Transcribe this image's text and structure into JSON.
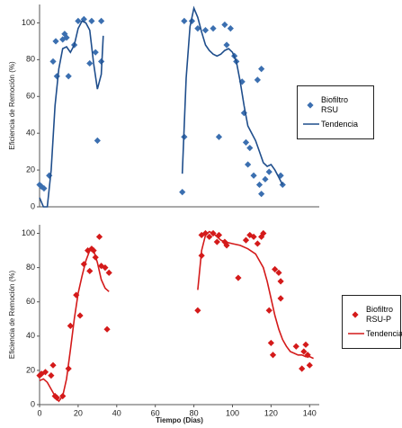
{
  "chart_data": [
    {
      "type": "scatter",
      "ylabel": "Eficiencia de Remoción (%)",
      "xlim": [
        0,
        145
      ],
      "ylim": [
        0,
        110
      ],
      "yticks": [
        0,
        20,
        40,
        60,
        80,
        100
      ],
      "legend": "right",
      "series": [
        {
          "name": "Biofiltro RSU",
          "mode": "markers",
          "marker": "diamond",
          "color": "#3b6fb0",
          "x": [
            0,
            1,
            2.3,
            5,
            7,
            8.4,
            9,
            12,
            13,
            14,
            15,
            18,
            20,
            23,
            26,
            27,
            29,
            30,
            32,
            32,
            74,
            75,
            75,
            79,
            82,
            86,
            90,
            93,
            96,
            97,
            99,
            101,
            102,
            105,
            106,
            107,
            108,
            109,
            111,
            113,
            114,
            115,
            115,
            117,
            119,
            125,
            126
          ],
          "values": [
            12,
            11,
            10,
            17,
            79,
            90,
            71,
            91,
            94,
            92,
            71,
            88,
            101,
            102,
            78,
            101,
            84,
            36,
            79,
            101,
            8,
            38,
            101,
            101,
            97,
            96,
            97,
            38,
            99,
            88,
            97,
            82,
            79,
            68,
            51,
            35,
            23,
            32,
            17,
            69,
            12,
            7,
            75,
            15,
            19,
            17,
            12
          ]
        },
        {
          "name": "Tendencia",
          "mode": "line",
          "color": "#1f4e8c",
          "x": [
            0,
            2,
            4,
            6,
            8,
            10,
            12,
            14,
            16,
            18,
            20,
            22,
            24,
            26,
            28,
            30,
            32,
            33,
            50,
            74,
            76,
            78,
            80,
            82,
            84,
            86,
            88,
            90,
            92,
            94,
            96,
            98,
            100,
            102,
            104,
            106,
            108,
            110,
            112,
            114,
            116,
            118,
            120,
            122,
            124,
            126
          ],
          "values": [
            5,
            0,
            0,
            20,
            55,
            75,
            86,
            87,
            84,
            88,
            97,
            101,
            100,
            96,
            78,
            64,
            72,
            93,
            null,
            18,
            70,
            98,
            108,
            103,
            95,
            88,
            85,
            83,
            82,
            83,
            85,
            86,
            84,
            79,
            68,
            55,
            44,
            40,
            36,
            30,
            24,
            22,
            23,
            20,
            16,
            12
          ]
        }
      ]
    },
    {
      "type": "scatter",
      "ylabel": "Eficiencia de Remoción (%)",
      "xlabel": "Tiempo (Días)",
      "xlim": [
        0,
        145
      ],
      "ylim": [
        0,
        105
      ],
      "xticks": [
        0,
        20,
        40,
        60,
        80,
        100,
        120,
        140
      ],
      "yticks": [
        0,
        20,
        40,
        60,
        80,
        100
      ],
      "legend": "right",
      "series": [
        {
          "name": "Biofiltro RSU-P",
          "mode": "markers",
          "marker": "diamond",
          "color": "#d41a1a",
          "x": [
            0,
            1,
            3,
            6,
            7,
            8,
            9,
            12,
            15,
            16,
            19,
            21,
            23,
            25,
            26,
            27,
            28,
            29,
            31,
            32,
            34,
            35,
            36,
            82,
            84,
            84,
            86,
            88,
            90,
            92,
            93,
            96,
            97,
            103,
            107,
            109,
            111,
            113,
            115,
            116,
            119,
            120,
            121,
            122,
            124,
            125,
            125,
            133,
            136,
            137,
            138,
            139,
            140
          ],
          "values": [
            17,
            18,
            19,
            17,
            23,
            5,
            4,
            5,
            21,
            46,
            64,
            52,
            82,
            90,
            78,
            91,
            90,
            86,
            98,
            81,
            80,
            44,
            77,
            55,
            87,
            99,
            100,
            98,
            100,
            95,
            99,
            95,
            93,
            74,
            96,
            99,
            98,
            94,
            98,
            100,
            55,
            36,
            29,
            79,
            77,
            72,
            62,
            34,
            21,
            31,
            35,
            29,
            23
          ]
        },
        {
          "name": "Tendencia",
          "mode": "line",
          "color": "#d41a1a",
          "x": [
            0,
            2,
            4,
            6,
            8,
            10,
            12,
            14,
            16,
            18,
            20,
            22,
            24,
            26,
            28,
            30,
            32,
            34,
            36,
            60,
            82,
            84,
            86,
            88,
            90,
            92,
            94,
            96,
            100,
            104,
            108,
            112,
            116,
            118,
            120,
            122,
            124,
            126,
            128,
            130,
            132,
            134,
            136,
            138,
            140,
            142
          ],
          "values": [
            14,
            15,
            13,
            9,
            5,
            2,
            5,
            15,
            32,
            50,
            65,
            75,
            84,
            90,
            90,
            83,
            73,
            68,
            66,
            null,
            67,
            90,
            99,
            101,
            100,
            98,
            96,
            95,
            94,
            93,
            91,
            88,
            80,
            72,
            62,
            52,
            44,
            38,
            34,
            31,
            30,
            29,
            29,
            28,
            28,
            27
          ]
        }
      ]
    }
  ]
}
